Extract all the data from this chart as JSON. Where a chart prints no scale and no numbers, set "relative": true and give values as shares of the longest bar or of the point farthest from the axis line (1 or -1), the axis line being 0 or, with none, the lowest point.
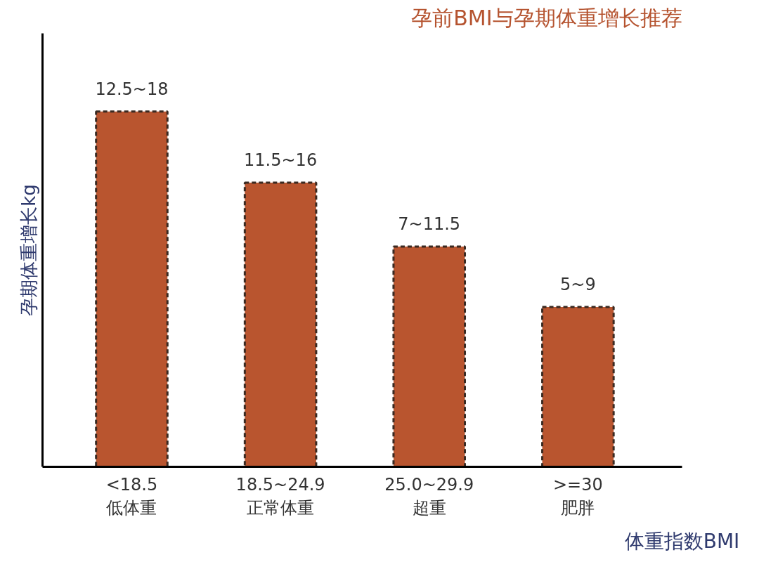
{
  "chart_data": {
    "type": "bar",
    "title": "孕前BMI与孕期体重增长推荐",
    "xlabel": "体重指数BMI",
    "ylabel": "孕期体重增长kg",
    "categories": [
      "<18.5\n低体重",
      "18.5~24.9\n正常体重",
      "25.0~29.9\n超重",
      ">=30\n肥胖"
    ],
    "values": [
      1,
      0.8,
      0.62,
      0.45
    ],
    "annotations": [
      {
        "text": "12.5~18",
        "x": "<18.5\n低体重",
        "y": 1
      },
      {
        "text": "11.5~16",
        "x": "18.5~24.9\n正常体重",
        "y": 0.8
      },
      {
        "text": "7~11.5",
        "x": "25.0~29.9\n超重",
        "y": 0.62
      },
      {
        "text": "5~9",
        "x": ">=30\n肥胖",
        "y": 0.45
      }
    ],
    "relative": true,
    "color": "#b9552f",
    "grid": false
  }
}
